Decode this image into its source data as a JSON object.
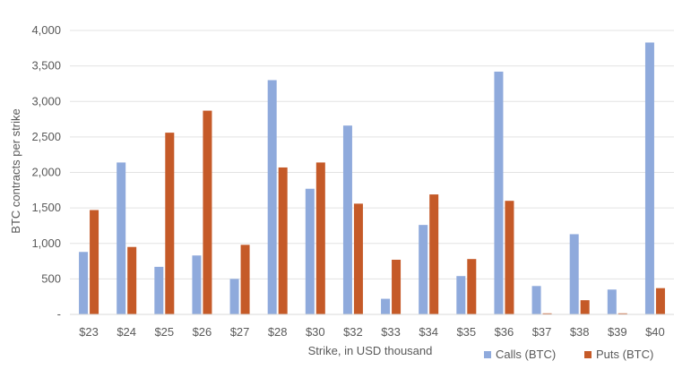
{
  "chart_data": {
    "type": "bar",
    "title": "",
    "xlabel": "Strike, in USD thousand",
    "ylabel": "BTC contracts per strike",
    "categories": [
      "$23",
      "$24",
      "$25",
      "$26",
      "$27",
      "$28",
      "$30",
      "$32",
      "$33",
      "$34",
      "$35",
      "$36",
      "$37",
      "$38",
      "$39",
      "$40"
    ],
    "series": [
      {
        "name": "Calls (BTC)",
        "color": "#8faadc",
        "values": [
          880,
          2140,
          670,
          830,
          500,
          3300,
          1770,
          2660,
          220,
          1260,
          540,
          3420,
          400,
          1130,
          350,
          3830
        ]
      },
      {
        "name": "Puts (BTC)",
        "color": "#c55a28",
        "values": [
          1470,
          950,
          2560,
          2870,
          980,
          2070,
          2140,
          1560,
          770,
          1690,
          780,
          1600,
          15,
          200,
          15,
          370
        ]
      }
    ],
    "ylim": [
      0,
      4000
    ],
    "yticks": [
      0,
      500,
      1000,
      1500,
      2000,
      2500,
      3000,
      3500,
      4000
    ],
    "ytick_labels": [
      "-",
      "500",
      "1,000",
      "1,500",
      "2,000",
      "2,500",
      "3,000",
      "3,500",
      "4,000"
    ],
    "grid": true,
    "legend_position": "bottom-right"
  }
}
